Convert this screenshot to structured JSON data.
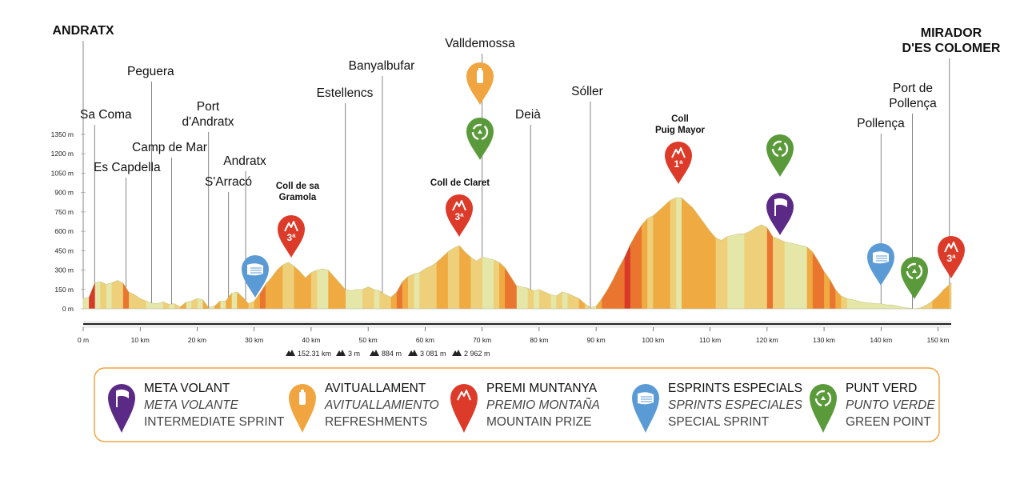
{
  "chart_data": {
    "type": "area",
    "x_unit": "km",
    "y_unit": "m",
    "x_ticks": [
      0,
      10,
      20,
      30,
      40,
      50,
      60,
      70,
      80,
      90,
      100,
      110,
      120,
      130,
      140,
      150
    ],
    "x_tick_labels": [
      "0 m",
      "10 km",
      "20 km",
      "30 km",
      "40 km",
      "50 km",
      "60 km",
      "70 km",
      "80 km",
      "90 km",
      "100 km",
      "110 km",
      "120 km",
      "130 km",
      "140 km",
      "150 km"
    ],
    "y_ticks": [
      0,
      150,
      300,
      450,
      600,
      750,
      900,
      1050,
      1200,
      1350
    ],
    "y_tick_labels": [
      "0 m",
      "150 m",
      "300 m",
      "450 m",
      "600 m",
      "750 m",
      "900 m",
      "1050 m",
      "1200 m",
      "1350 m"
    ],
    "xlim": [
      0,
      152.31
    ],
    "ylim": [
      0,
      1400
    ],
    "profile": [
      [
        0,
        80
      ],
      [
        1,
        90
      ],
      [
        2,
        200
      ],
      [
        3,
        210
      ],
      [
        4,
        190
      ],
      [
        5,
        200
      ],
      [
        6,
        220
      ],
      [
        7,
        200
      ],
      [
        8,
        130
      ],
      [
        9,
        110
      ],
      [
        10,
        80
      ],
      [
        11,
        60
      ],
      [
        12,
        45
      ],
      [
        13,
        40
      ],
      [
        14,
        55
      ],
      [
        15,
        35
      ],
      [
        16,
        40
      ],
      [
        17,
        15
      ],
      [
        18,
        50
      ],
      [
        19,
        60
      ],
      [
        20,
        80
      ],
      [
        21,
        70
      ],
      [
        22,
        10
      ],
      [
        23,
        20
      ],
      [
        24,
        60
      ],
      [
        25,
        60
      ],
      [
        26,
        120
      ],
      [
        27,
        130
      ],
      [
        28,
        90
      ],
      [
        29,
        40
      ],
      [
        30,
        60
      ],
      [
        31,
        120
      ],
      [
        32,
        190
      ],
      [
        33,
        240
      ],
      [
        34,
        300
      ],
      [
        35,
        340
      ],
      [
        36,
        360
      ],
      [
        37,
        330
      ],
      [
        38,
        290
      ],
      [
        39,
        240
      ],
      [
        40,
        280
      ],
      [
        41,
        300
      ],
      [
        42,
        310
      ],
      [
        43,
        300
      ],
      [
        44,
        250
      ],
      [
        45,
        200
      ],
      [
        46,
        150
      ],
      [
        47,
        140
      ],
      [
        48,
        150
      ],
      [
        49,
        150
      ],
      [
        50,
        170
      ],
      [
        51,
        150
      ],
      [
        52,
        140
      ],
      [
        53,
        110
      ],
      [
        54,
        90
      ],
      [
        55,
        130
      ],
      [
        56,
        210
      ],
      [
        57,
        250
      ],
      [
        58,
        270
      ],
      [
        59,
        280
      ],
      [
        60,
        310
      ],
      [
        61,
        330
      ],
      [
        62,
        360
      ],
      [
        63,
        400
      ],
      [
        64,
        440
      ],
      [
        65,
        470
      ],
      [
        66,
        490
      ],
      [
        67,
        440
      ],
      [
        68,
        400
      ],
      [
        69,
        370
      ],
      [
        70,
        400
      ],
      [
        71,
        390
      ],
      [
        72,
        380
      ],
      [
        73,
        360
      ],
      [
        74,
        320
      ],
      [
        75,
        250
      ],
      [
        76,
        180
      ],
      [
        77,
        170
      ],
      [
        78,
        160
      ],
      [
        79,
        140
      ],
      [
        80,
        150
      ],
      [
        81,
        130
      ],
      [
        82,
        110
      ],
      [
        83,
        100
      ],
      [
        84,
        130
      ],
      [
        85,
        120
      ],
      [
        86,
        100
      ],
      [
        87,
        80
      ],
      [
        88,
        40
      ],
      [
        89,
        10
      ],
      [
        90,
        20
      ],
      [
        91,
        80
      ],
      [
        92,
        150
      ],
      [
        93,
        230
      ],
      [
        94,
        320
      ],
      [
        95,
        400
      ],
      [
        96,
        500
      ],
      [
        97,
        580
      ],
      [
        98,
        650
      ],
      [
        99,
        700
      ],
      [
        100,
        720
      ],
      [
        101,
        760
      ],
      [
        102,
        800
      ],
      [
        103,
        840
      ],
      [
        104,
        860
      ],
      [
        105,
        860
      ],
      [
        106,
        820
      ],
      [
        107,
        780
      ],
      [
        108,
        720
      ],
      [
        109,
        660
      ],
      [
        110,
        600
      ],
      [
        111,
        550
      ],
      [
        112,
        530
      ],
      [
        113,
        560
      ],
      [
        114,
        570
      ],
      [
        115,
        580
      ],
      [
        116,
        580
      ],
      [
        117,
        600
      ],
      [
        118,
        630
      ],
      [
        119,
        650
      ],
      [
        120,
        630
      ],
      [
        121,
        560
      ],
      [
        122,
        540
      ],
      [
        123,
        520
      ],
      [
        124,
        510
      ],
      [
        125,
        500
      ],
      [
        126,
        490
      ],
      [
        127,
        480
      ],
      [
        128,
        440
      ],
      [
        129,
        370
      ],
      [
        130,
        290
      ],
      [
        131,
        230
      ],
      [
        132,
        150
      ],
      [
        133,
        100
      ],
      [
        134,
        80
      ],
      [
        135,
        70
      ],
      [
        136,
        60
      ],
      [
        137,
        50
      ],
      [
        138,
        45
      ],
      [
        139,
        40
      ],
      [
        140,
        40
      ],
      [
        141,
        30
      ],
      [
        142,
        30
      ],
      [
        143,
        20
      ],
      [
        144,
        10
      ],
      [
        145,
        5
      ],
      [
        146,
        0
      ],
      [
        147,
        10
      ],
      [
        148,
        30
      ],
      [
        149,
        60
      ],
      [
        150,
        100
      ],
      [
        151,
        150
      ],
      [
        152.31,
        200
      ]
    ],
    "places": [
      {
        "name": "Sa Coma",
        "km": 2
      },
      {
        "name": "Es Capdella",
        "km": 7.5
      },
      {
        "name": "Peguera",
        "km": 12
      },
      {
        "name": "Camp de Mar",
        "km": 15.5
      },
      {
        "name": "Port\nd'Andratx",
        "km": 22
      },
      {
        "name": "S'Arracó",
        "km": 25.5
      },
      {
        "name": "Andratx",
        "km": 28.5
      },
      {
        "name": "Estellencs",
        "km": 46
      },
      {
        "name": "Banyalbufar",
        "km": 52.5
      },
      {
        "name": "Valldemossa",
        "km": 70
      },
      {
        "name": "Deià",
        "km": 78.5
      },
      {
        "name": "Sóller",
        "km": 89
      },
      {
        "name": "Pollença",
        "km": 140
      },
      {
        "name": "Port de\nPollença",
        "km": 145.5
      },
      {
        "name": "ANDRATX",
        "km": 0
      },
      {
        "name": "MIRADOR\nD'ES COLOMER",
        "km": 152
      }
    ],
    "climbs": [
      {
        "name": "Coll de sa\nGramola",
        "km": 36,
        "category": "3ª"
      },
      {
        "name": "Coll de Claret",
        "km": 66,
        "category": "3ª"
      },
      {
        "name": "Coll\nPuig Mayor",
        "km": 104.5,
        "category": "1ª"
      }
    ],
    "markers": [
      {
        "type": "special-sprint",
        "km": 30
      },
      {
        "type": "mountain-prize",
        "km": 36,
        "label": "3ª"
      },
      {
        "type": "mountain-prize",
        "km": 66,
        "label": "3ª"
      },
      {
        "type": "refreshments",
        "km": 70
      },
      {
        "type": "green-point",
        "km": 70
      },
      {
        "type": "mountain-prize",
        "km": 104.5,
        "label": "1ª"
      },
      {
        "type": "green-point",
        "km": 122
      },
      {
        "type": "intermediate-sprint",
        "km": 122
      },
      {
        "type": "special-sprint",
        "km": 140
      },
      {
        "type": "green-point",
        "km": 145.5
      },
      {
        "type": "mountain-prize",
        "km": 152,
        "label": "3ª"
      }
    ],
    "stats": [
      "152.31 km",
      "3 m",
      "884 m",
      "3 081 m",
      "2 962 m"
    ]
  },
  "colors": {
    "intermediate-sprint": "#5b2a86",
    "refreshments": "#f0a540",
    "mountain-prize": "#dd3b2a",
    "special-sprint": "#5b9bd5",
    "green-point": "#5a9a3a",
    "legend_border": "#f0a540"
  },
  "legend": [
    {
      "key": "intermediate-sprint",
      "icon": "flag-icon",
      "l1": "META VOLANT",
      "l2": "META VOLANTE",
      "l3": "INTERMEDIATE SPRINT"
    },
    {
      "key": "refreshments",
      "icon": "bottle-icon",
      "l1": "AVITUALLAMENT",
      "l2": "AVITUALLAMIENTO",
      "l3": "REFRESHMENTS"
    },
    {
      "key": "mountain-prize",
      "icon": "mountain-icon",
      "l1": "PREMI MUNTANYA",
      "l2": "PREMIO MONTAÑA",
      "l3": "MOUNTAIN PRIZE"
    },
    {
      "key": "special-sprint",
      "icon": "wind-icon",
      "l1": "ESPRINTS ESPECIALS",
      "l2": "SPRINTS ESPECIALES",
      "l3": "SPECIAL SPRINT"
    },
    {
      "key": "green-point",
      "icon": "recycle-icon",
      "l1": "PUNT VERD",
      "l2": "PUNTO VERDE",
      "l3": "GREEN POINT"
    }
  ]
}
